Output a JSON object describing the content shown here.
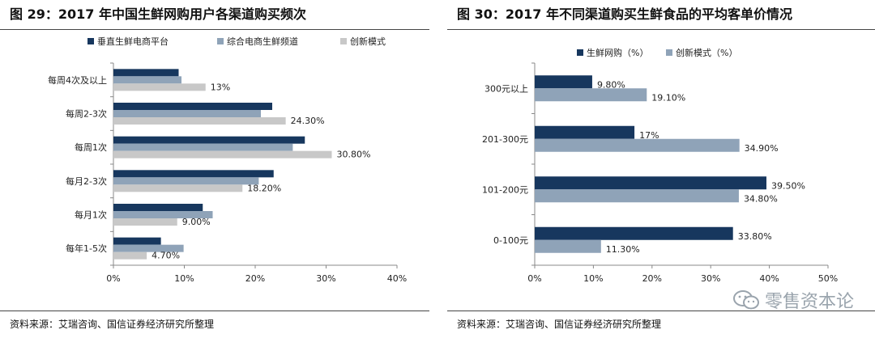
{
  "figures": [
    {
      "title": "图 29：2017 年中国生鲜网购用户各渠道购买频次",
      "source": "资料来源：艾瑞咨询、国信证券经济研究所整理"
    },
    {
      "title": "图 30：2017 年不同渠道购买生鲜食品的平均客单价情况",
      "source": "资料来源：艾瑞咨询、国信证券经济研究所整理"
    }
  ],
  "watermark": {
    "text": "零售资本论",
    "icon": "wechat-icon"
  },
  "chart_data": [
    {
      "type": "bar",
      "orientation": "horizontal",
      "categories": [
        "每周4次及以上",
        "每周2-3次",
        "每周1次",
        "每月2-3次",
        "每月1次",
        "每年1-5次"
      ],
      "series": [
        {
          "name": "垂直生鲜电商平台",
          "color": "#17375e",
          "values": [
            9.2,
            22.4,
            27.0,
            22.6,
            12.6,
            6.7
          ]
        },
        {
          "name": "综合电商生鲜频道",
          "color": "#8fa3b8",
          "values": [
            9.6,
            20.8,
            25.3,
            20.5,
            14.0,
            9.9
          ]
        },
        {
          "name": "创新模式",
          "color": "#c8c8c8",
          "values": [
            13.0,
            24.3,
            30.8,
            18.2,
            9.0,
            4.7
          ]
        }
      ],
      "data_labels": {
        "series": 2,
        "labels": [
          "13%",
          "24.30%",
          "30.80%",
          "18.20%",
          "9.00%",
          "4.70%"
        ]
      },
      "xlim": [
        0,
        40
      ],
      "xticks": [
        "0%",
        "10%",
        "20%",
        "30%",
        "40%"
      ],
      "legend": "top",
      "grid": false
    },
    {
      "type": "bar",
      "orientation": "horizontal",
      "categories": [
        "300元以上",
        "201-300元",
        "101-200元",
        "0-100元"
      ],
      "series": [
        {
          "name": "生鲜网购（%）",
          "color": "#17375e",
          "values": [
            9.8,
            17.0,
            39.5,
            33.8
          ],
          "labels": [
            "9.80%",
            "17%",
            "39.50%",
            "33.80%"
          ]
        },
        {
          "name": "创新模式（%）",
          "color": "#8fa3b8",
          "values": [
            19.1,
            34.9,
            34.8,
            11.3
          ],
          "labels": [
            "19.10%",
            "34.90%",
            "34.80%",
            "11.30%"
          ]
        }
      ],
      "xlim": [
        0,
        50
      ],
      "xticks": [
        "0%",
        "10%",
        "20%",
        "30%",
        "40%",
        "50%"
      ],
      "legend": "top",
      "grid": false
    }
  ]
}
